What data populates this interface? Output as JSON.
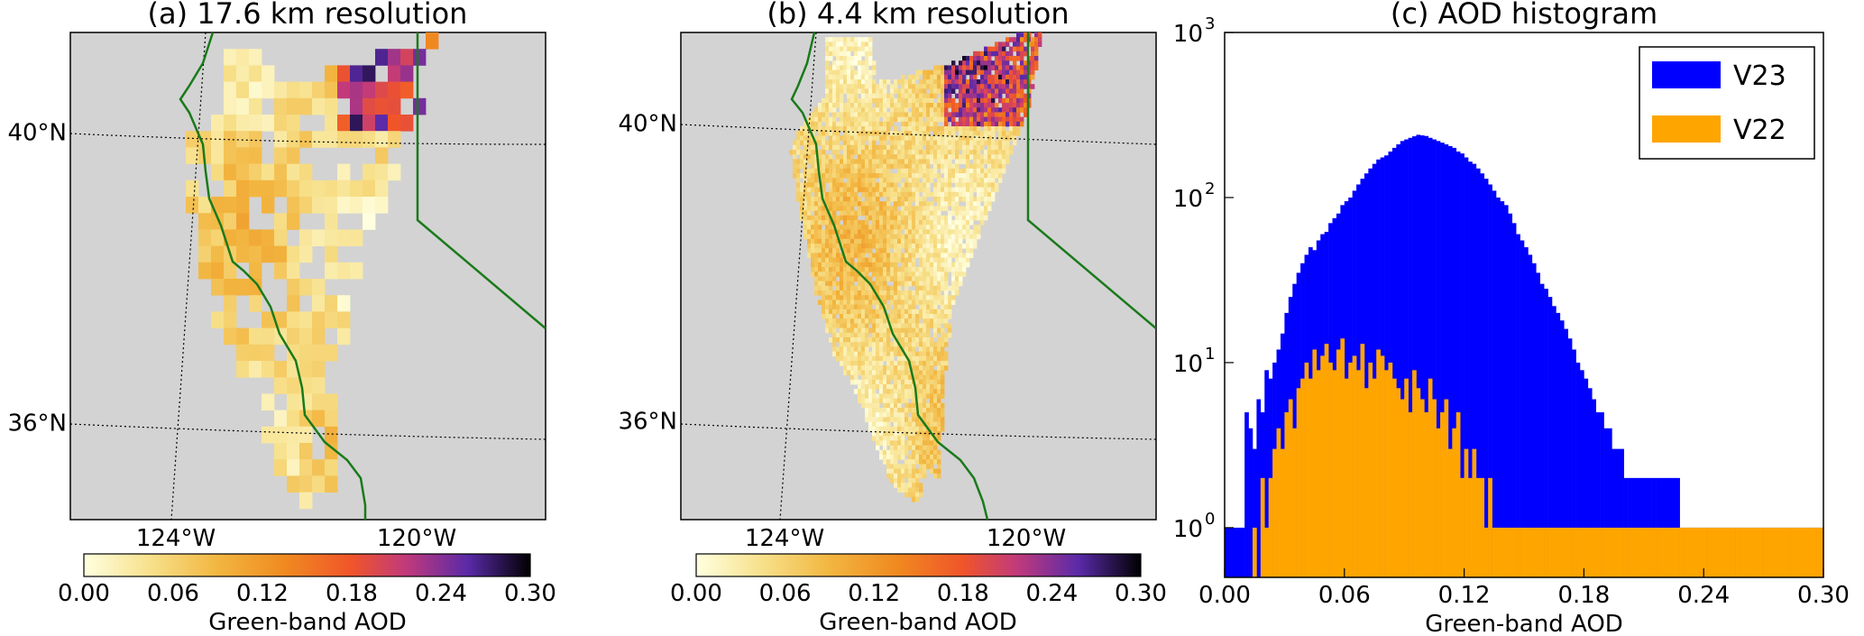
{
  "colors": {
    "map_bg": "#d3d3d3",
    "coast": "#1a7a1a",
    "v23": "#0000ff",
    "v22": "#ffa500",
    "colormap": [
      "#ffffe0",
      "#f7e08a",
      "#f2b640",
      "#f08a20",
      "#f0552a",
      "#c23a7a",
      "#5a2aa8",
      "#000000"
    ]
  },
  "chart_data": [
    {
      "type": "heatmap",
      "title": "(a) 17.6 km resolution",
      "lat_labels": [
        "40°N",
        "36°N"
      ],
      "lon_labels": [
        "124°W",
        "120°W"
      ],
      "colorbar": {
        "label": "Green-band AOD",
        "ticks": [
          "0.00",
          "0.06",
          "0.12",
          "0.18",
          "0.24",
          "0.30"
        ],
        "range": [
          0,
          0.3
        ]
      }
    },
    {
      "type": "heatmap",
      "title": "(b) 4.4 km resolution",
      "lat_labels": [
        "40°N",
        "36°N"
      ],
      "lon_labels": [
        "124°W",
        "120°W"
      ],
      "colorbar": {
        "label": "Green-band AOD",
        "ticks": [
          "0.00",
          "0.06",
          "0.12",
          "0.18",
          "0.24",
          "0.30"
        ],
        "range": [
          0,
          0.3
        ]
      }
    },
    {
      "type": "bar",
      "title": "(c) AOD histogram",
      "xlabel": "Green-band AOD",
      "xlim": [
        0,
        0.3
      ],
      "xticks": [
        "0.00",
        "0.06",
        "0.12",
        "0.18",
        "0.24",
        "0.30"
      ],
      "yscale": "log",
      "ylim": [
        0.5,
        1000
      ],
      "ytick_base": "10",
      "ytick_exponents": [
        "0",
        "1",
        "2",
        "3"
      ],
      "legend_position": "top-right",
      "bin_width": 0.002,
      "series": [
        {
          "name": "V23",
          "values": [
            1,
            1,
            1,
            1,
            1,
            5,
            4,
            3,
            6,
            5,
            9,
            8,
            10,
            12,
            15,
            20,
            25,
            30,
            35,
            40,
            45,
            50,
            48,
            55,
            60,
            62,
            70,
            75,
            80,
            90,
            95,
            100,
            110,
            120,
            130,
            140,
            150,
            160,
            170,
            175,
            180,
            190,
            200,
            210,
            220,
            225,
            230,
            235,
            240,
            238,
            236,
            230,
            225,
            220,
            215,
            210,
            205,
            200,
            190,
            185,
            175,
            165,
            160,
            150,
            140,
            130,
            120,
            110,
            100,
            95,
            90,
            80,
            70,
            60,
            55,
            50,
            45,
            40,
            35,
            30,
            28,
            25,
            22,
            20,
            18,
            16,
            14,
            12,
            10,
            9,
            8,
            7,
            6,
            5,
            5,
            4,
            4,
            3,
            3,
            3,
            2,
            2,
            2,
            2,
            2,
            2,
            2,
            2,
            2,
            2,
            2,
            2,
            2,
            2,
            1,
            1,
            1,
            1,
            1,
            1,
            1,
            1,
            1,
            1,
            1,
            1,
            1,
            1,
            1,
            1,
            1,
            1,
            1,
            1,
            1,
            1,
            1,
            1,
            1,
            1,
            1,
            1,
            1,
            1,
            1,
            1,
            1,
            1,
            1,
            1
          ]
        },
        {
          "name": "V22",
          "values": [
            0,
            0,
            0,
            0,
            0,
            0,
            0,
            1,
            0,
            2,
            1,
            2,
            3,
            4,
            3,
            5,
            6,
            4,
            7,
            8,
            10,
            8,
            12,
            9,
            11,
            13,
            10,
            9,
            12,
            14,
            8,
            10,
            11,
            9,
            13,
            7,
            10,
            8,
            12,
            11,
            9,
            10,
            8,
            7,
            6,
            8,
            5,
            9,
            7,
            6,
            5,
            8,
            6,
            4,
            5,
            6,
            3,
            4,
            5,
            2,
            3,
            2,
            3,
            2,
            2,
            1,
            2,
            1,
            1,
            1,
            1,
            1,
            1,
            1,
            1,
            1,
            1,
            1,
            1,
            1,
            1,
            1,
            1,
            1,
            1,
            1,
            1,
            1,
            1,
            1,
            1,
            1,
            1,
            1,
            1,
            1,
            1,
            1,
            1,
            1,
            1,
            1,
            1,
            1,
            1,
            1,
            1,
            1,
            1,
            1,
            1,
            1,
            1,
            1,
            1,
            1,
            1,
            1,
            1,
            1,
            1,
            1,
            1,
            1,
            1,
            1,
            1,
            1,
            1,
            1,
            1,
            1,
            1,
            1,
            1,
            1,
            1,
            1,
            1,
            1,
            1,
            1,
            1,
            1,
            1,
            1,
            1,
            1,
            1,
            1
          ]
        }
      ]
    }
  ]
}
